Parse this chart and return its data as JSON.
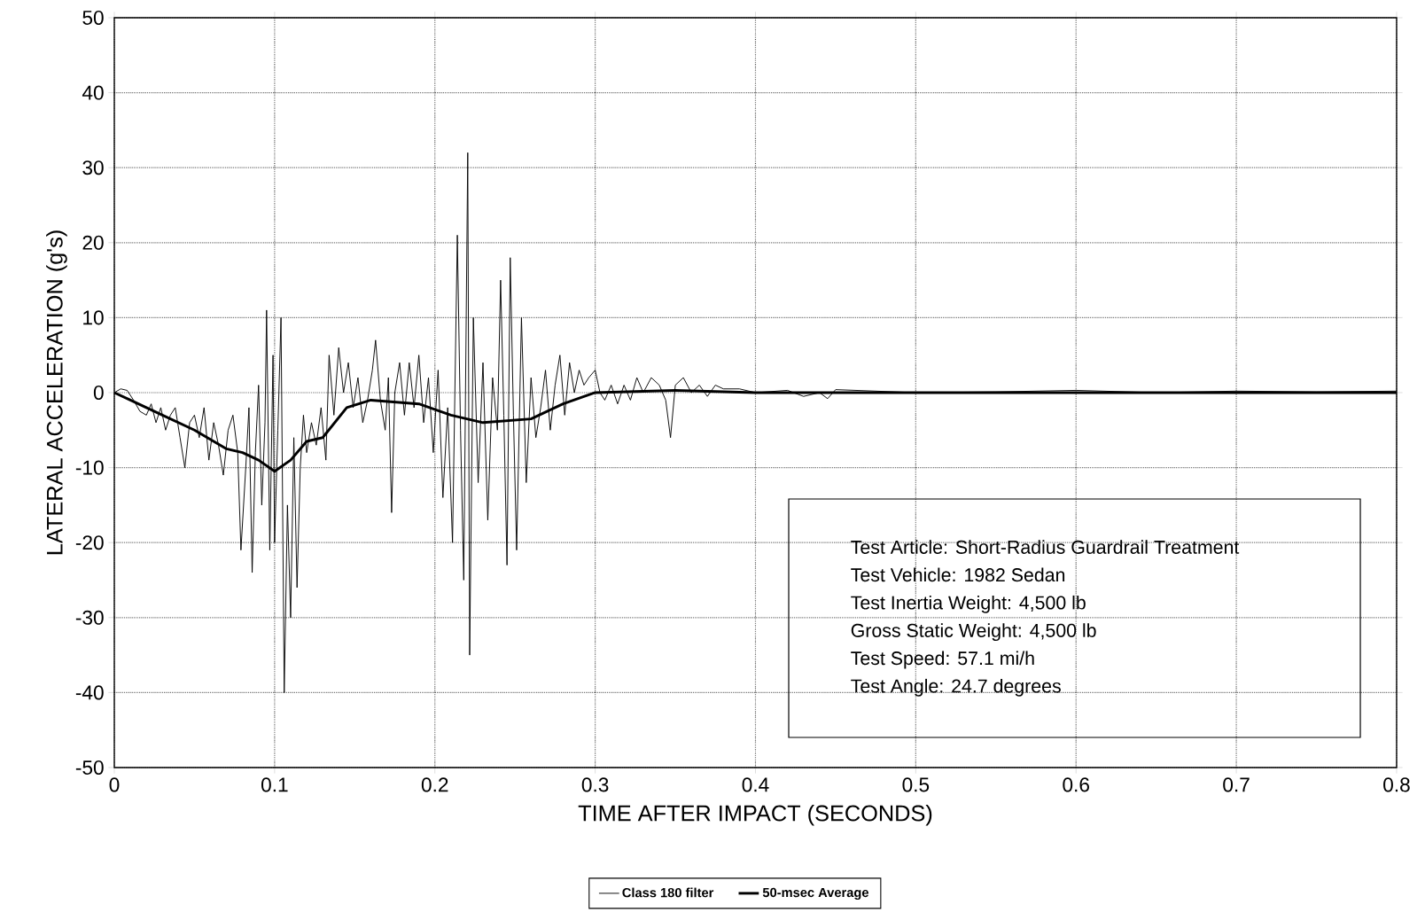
{
  "chart_data": {
    "type": "line",
    "xlabel": "TIME AFTER IMPACT (SECONDS)",
    "ylabel": "LATERAL ACCELERATION (g's)",
    "xlim": [
      0,
      0.8
    ],
    "xticks": [
      0,
      0.1,
      0.2,
      0.3,
      0.4,
      0.5,
      0.6,
      0.7,
      0.8
    ],
    "ylim": [
      -50,
      50
    ],
    "yticks": [
      -50,
      -40,
      -30,
      -20,
      -10,
      0,
      10,
      20,
      30,
      40,
      50
    ],
    "grid": true,
    "legend": "bottom",
    "marker": "none",
    "line_style": "solid",
    "series": [
      {
        "name": "Class 180 filter",
        "color": "#000000",
        "x": [
          0,
          0.004,
          0.008,
          0.012,
          0.016,
          0.02,
          0.023,
          0.026,
          0.029,
          0.032,
          0.035,
          0.038,
          0.041,
          0.044,
          0.047,
          0.05,
          0.053,
          0.056,
          0.059,
          0.062,
          0.065,
          0.068,
          0.071,
          0.074,
          0.077,
          0.079,
          0.082,
          0.084,
          0.086,
          0.088,
          0.09,
          0.092,
          0.094,
          0.095,
          0.097,
          0.099,
          0.1,
          0.102,
          0.104,
          0.106,
          0.108,
          0.11,
          0.112,
          0.114,
          0.116,
          0.118,
          0.12,
          0.123,
          0.126,
          0.129,
          0.132,
          0.134,
          0.137,
          0.14,
          0.143,
          0.146,
          0.149,
          0.152,
          0.155,
          0.158,
          0.161,
          0.163,
          0.166,
          0.169,
          0.171,
          0.173,
          0.175,
          0.178,
          0.181,
          0.184,
          0.187,
          0.19,
          0.193,
          0.196,
          0.199,
          0.202,
          0.205,
          0.208,
          0.211,
          0.214,
          0.216,
          0.218,
          0.2205,
          0.2217,
          0.224,
          0.227,
          0.23,
          0.233,
          0.236,
          0.239,
          0.241,
          0.243,
          0.245,
          0.247,
          0.249,
          0.251,
          0.254,
          0.257,
          0.26,
          0.263,
          0.266,
          0.269,
          0.272,
          0.275,
          0.278,
          0.281,
          0.284,
          0.287,
          0.29,
          0.293,
          0.296,
          0.3,
          0.303,
          0.306,
          0.31,
          0.314,
          0.318,
          0.322,
          0.326,
          0.33,
          0.335,
          0.34,
          0.344,
          0.347,
          0.35,
          0.355,
          0.36,
          0.365,
          0.37,
          0.375,
          0.38,
          0.39,
          0.4,
          0.42,
          0.43,
          0.44,
          0.445,
          0.45,
          0.5,
          0.55,
          0.6,
          0.65,
          0.7,
          0.75,
          0.8
        ],
        "values": [
          0,
          0.5,
          0.3,
          -1,
          -2.5,
          -3,
          -1.5,
          -4,
          -2,
          -5,
          -3,
          -2,
          -6,
          -10,
          -4,
          -3,
          -6,
          -2,
          -9,
          -4,
          -7,
          -11,
          -5,
          -3,
          -8,
          -21,
          -10,
          -2,
          -24,
          -8,
          1,
          -15,
          -4,
          11,
          -21,
          5,
          -20,
          -5,
          10,
          -40,
          -15,
          -30,
          -6,
          -26,
          -10,
          -3,
          -8,
          -4,
          -7,
          -2,
          -9,
          5,
          -3,
          6,
          0,
          4,
          -2,
          2,
          -4,
          -1,
          3,
          7,
          -1,
          -5,
          2,
          -16,
          0,
          4,
          -3,
          4,
          -2,
          5,
          -4,
          2,
          -8,
          3,
          -14,
          -2,
          -20,
          21,
          -5,
          -25,
          32,
          -35,
          10,
          -12,
          4,
          -17,
          2,
          -5,
          15,
          -3,
          -23,
          18,
          -3,
          -21,
          10,
          -12,
          2,
          -6,
          -2,
          3,
          -5,
          1,
          5,
          -3,
          4,
          0,
          3,
          1,
          2,
          3,
          0,
          -1,
          1,
          -1.5,
          1,
          -1,
          2,
          0,
          2,
          1,
          -1,
          -6,
          1,
          2,
          0,
          1,
          -0.5,
          1,
          0.5,
          0.5,
          0,
          0.3,
          -0.5,
          0,
          -0.8,
          0.4,
          0,
          0.1,
          0.3,
          0,
          0.2,
          0.1,
          0.2
        ]
      },
      {
        "name": "50-msec Average",
        "color": "#000000",
        "x": [
          0,
          0.01,
          0.03,
          0.05,
          0.07,
          0.08,
          0.09,
          0.1,
          0.11,
          0.12,
          0.13,
          0.145,
          0.16,
          0.19,
          0.21,
          0.23,
          0.26,
          0.28,
          0.3,
          0.35,
          0.4,
          0.5,
          0.6,
          0.7,
          0.8
        ],
        "values": [
          0,
          -1,
          -3,
          -5,
          -7.5,
          -8,
          -9,
          -10.5,
          -9,
          -6.5,
          -6,
          -2,
          -1,
          -1.5,
          -3,
          -4,
          -3.5,
          -1.5,
          0,
          0.3,
          0,
          0,
          0,
          0,
          0
        ]
      }
    ],
    "annotations": [
      "Test Article:  Short-Radius Guardrail Treatment",
      "Test Vehicle:  1982 Sedan",
      "Test Inertia Weight:  4,500 lb",
      "Gross Static Weight:  4,500 lb",
      "Test Speed:  57.1 mi/h",
      "Test Angle:  24.7 degrees"
    ]
  }
}
